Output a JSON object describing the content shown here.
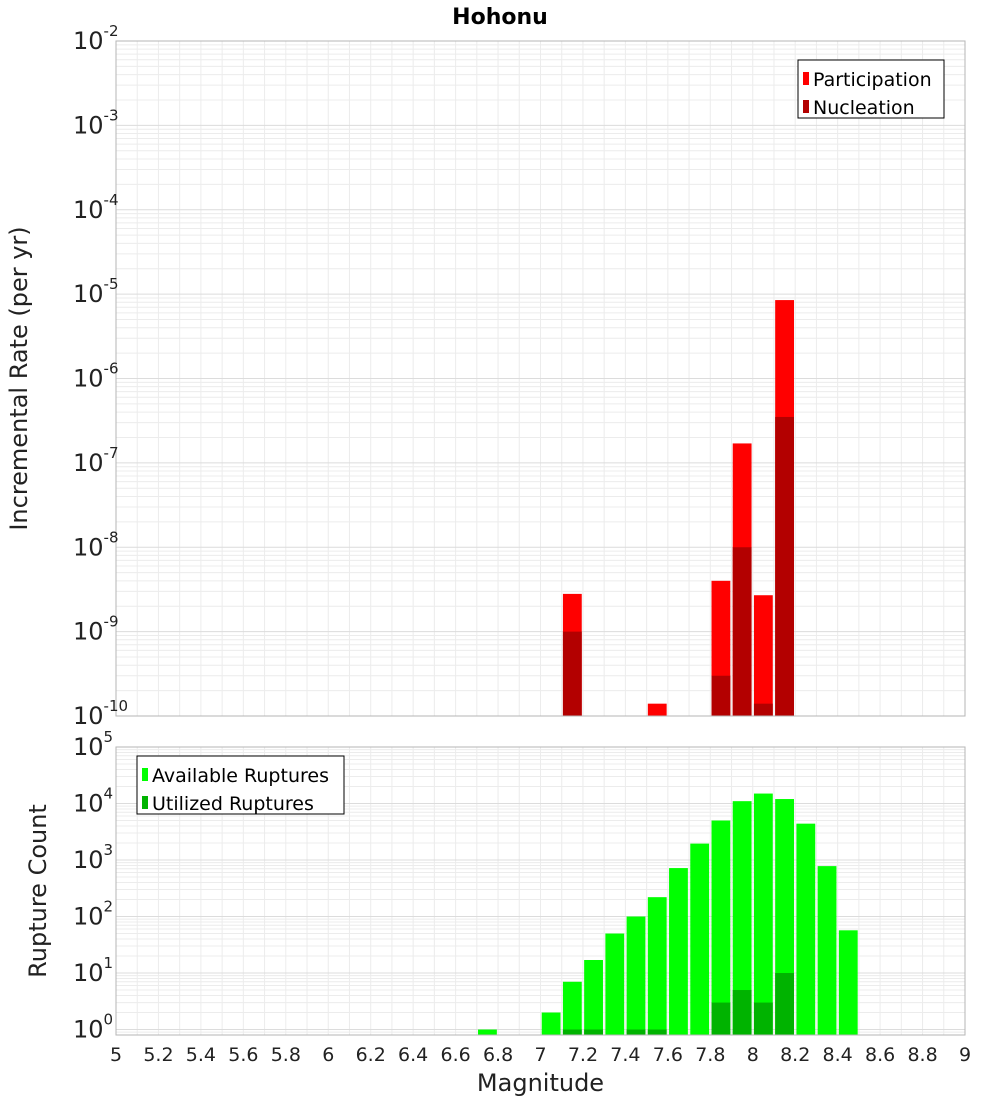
{
  "chart_data": [
    {
      "type": "bar",
      "title": "Hohonu",
      "xlabel": "",
      "ylabel": "Incremental Rate (per yr)",
      "yscale": "log",
      "ylim": [
        1e-10,
        0.01
      ],
      "xlim": [
        5,
        9
      ],
      "bin_width": 0.1,
      "grid": true,
      "legend": "top-right",
      "y_tick_labels": [
        {
          "base": "10",
          "exp": "-10",
          "value": 1e-10
        },
        {
          "base": "10",
          "exp": "-9",
          "value": 1e-09
        },
        {
          "base": "10",
          "exp": "-8",
          "value": 1e-08
        },
        {
          "base": "10",
          "exp": "-7",
          "value": 1e-07
        },
        {
          "base": "10",
          "exp": "-6",
          "value": 1e-06
        },
        {
          "base": "10",
          "exp": "-5",
          "value": 1e-05
        },
        {
          "base": "10",
          "exp": "-4",
          "value": 0.0001
        },
        {
          "base": "10",
          "exp": "-3",
          "value": 0.001
        },
        {
          "base": "10",
          "exp": "-2",
          "value": 0.01
        }
      ],
      "series": [
        {
          "name": "Participation",
          "color": "#ff0000",
          "x": [
            7.15,
            7.55,
            7.85,
            7.95,
            8.05,
            8.15
          ],
          "values": [
            2.8e-09,
            1.4e-10,
            4e-09,
            1.7e-07,
            2.7e-09,
            8.5e-06
          ]
        },
        {
          "name": "Nucleation",
          "color": "#b30000",
          "x": [
            7.15,
            7.85,
            7.95,
            8.05,
            8.15
          ],
          "values": [
            1e-09,
            3e-10,
            1e-08,
            1.4e-10,
            3.5e-07
          ]
        }
      ]
    },
    {
      "type": "bar",
      "title": "",
      "xlabel": "Magnitude",
      "ylabel": "Rupture Count",
      "yscale": "log",
      "ylim": [
        0.8,
        100000
      ],
      "xlim": [
        5,
        9
      ],
      "bin_width": 0.1,
      "grid": true,
      "legend": "top-left",
      "x_tick_labels": [
        "5",
        "5.2",
        "5.4",
        "5.6",
        "5.8",
        "6",
        "6.2",
        "6.4",
        "6.6",
        "6.8",
        "7",
        "7.2",
        "7.4",
        "7.6",
        "7.8",
        "8",
        "8.2",
        "8.4",
        "8.6",
        "8.8",
        "9"
      ],
      "y_tick_labels": [
        {
          "base": "10",
          "exp": "0",
          "value": 1
        },
        {
          "base": "10",
          "exp": "1",
          "value": 10
        },
        {
          "base": "10",
          "exp": "2",
          "value": 100
        },
        {
          "base": "10",
          "exp": "3",
          "value": 1000
        },
        {
          "base": "10",
          "exp": "4",
          "value": 10000
        },
        {
          "base": "10",
          "exp": "5",
          "value": 100000
        }
      ],
      "series": [
        {
          "name": "Available Ruptures",
          "color": "#00ff00",
          "x": [
            6.75,
            7.05,
            7.15,
            7.25,
            7.35,
            7.45,
            7.55,
            7.65,
            7.75,
            7.85,
            7.95,
            8.05,
            8.15,
            8.25,
            8.35,
            8.45
          ],
          "values": [
            1,
            2,
            7,
            17,
            50,
            100,
            220,
            720,
            1950,
            5000,
            11000,
            15000,
            12000,
            4400,
            780,
            57
          ]
        },
        {
          "name": "Utilized Ruptures",
          "color": "#00b300",
          "x": [
            7.15,
            7.25,
            7.45,
            7.55,
            7.85,
            7.95,
            8.05,
            8.15
          ],
          "values": [
            1,
            1,
            1,
            1,
            3,
            5,
            3,
            10
          ]
        }
      ]
    }
  ]
}
